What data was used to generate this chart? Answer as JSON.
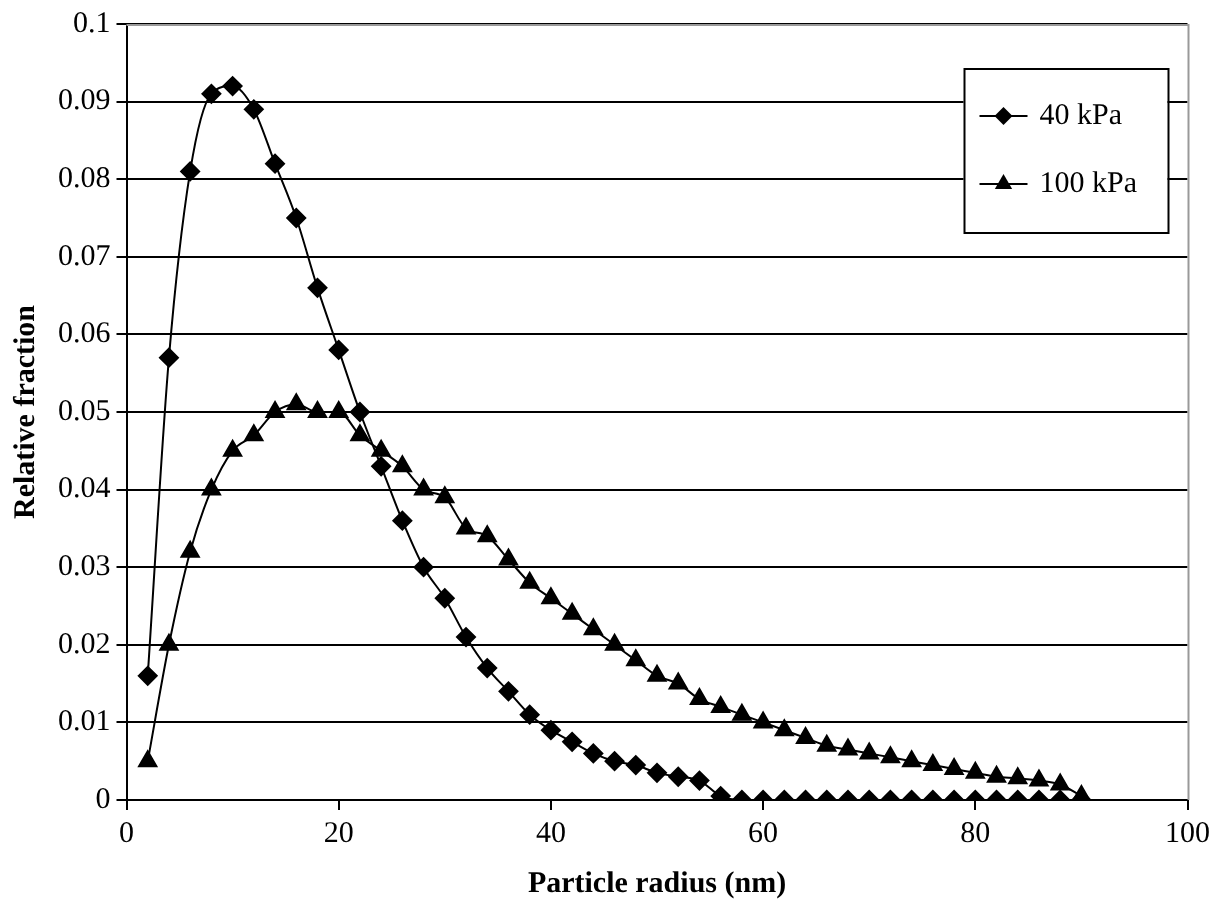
{
  "chart_data": {
    "type": "line",
    "xlabel": "Particle radius (nm)",
    "ylabel": "Relative fraction",
    "x": [
      2,
      4,
      6,
      8,
      10,
      12,
      14,
      16,
      18,
      20,
      22,
      24,
      26,
      28,
      30,
      32,
      34,
      36,
      38,
      40,
      42,
      44,
      46,
      48,
      50,
      52,
      54,
      56,
      58,
      60,
      62,
      64,
      66,
      68,
      70,
      72,
      74,
      76,
      78,
      80,
      82,
      84,
      86,
      88,
      90
    ],
    "series": [
      {
        "name": "40 kPa",
        "color": "#000000",
        "marker": "diamond",
        "values": [
          0.016,
          0.057,
          0.081,
          0.091,
          0.092,
          0.089,
          0.082,
          0.075,
          0.066,
          0.058,
          0.05,
          0.043,
          0.036,
          0.03,
          0.026,
          0.021,
          0.017,
          0.014,
          0.011,
          0.009,
          0.0075,
          0.006,
          0.005,
          0.0045,
          0.0035,
          0.003,
          0.0025,
          0.0005,
          0,
          0,
          0,
          0,
          0,
          0,
          0,
          0,
          0,
          0,
          0,
          0,
          0,
          0,
          0,
          0,
          0
        ]
      },
      {
        "name": "100 kPa",
        "color": "#000000",
        "marker": "triangle",
        "values": [
          0.005,
          0.02,
          0.032,
          0.04,
          0.045,
          0.047,
          0.05,
          0.051,
          0.05,
          0.05,
          0.047,
          0.045,
          0.043,
          0.04,
          0.039,
          0.035,
          0.034,
          0.031,
          0.028,
          0.026,
          0.024,
          0.022,
          0.02,
          0.018,
          0.016,
          0.015,
          0.013,
          0.012,
          0.011,
          0.01,
          0.009,
          0.008,
          0.007,
          0.0065,
          0.006,
          0.0055,
          0.005,
          0.0045,
          0.004,
          0.0035,
          0.003,
          0.0028,
          0.0025,
          0.002,
          0.0005
        ]
      }
    ],
    "xlim": [
      0,
      100
    ],
    "xticks": [
      0,
      20,
      40,
      60,
      80,
      100
    ],
    "ylim": [
      0,
      0.1
    ],
    "yticks": [
      0,
      0.01,
      0.02,
      0.03,
      0.04,
      0.05,
      0.06,
      0.07,
      0.08,
      0.09,
      0.1
    ],
    "grid": "y",
    "legend": "top right",
    "line_style": "solid"
  }
}
